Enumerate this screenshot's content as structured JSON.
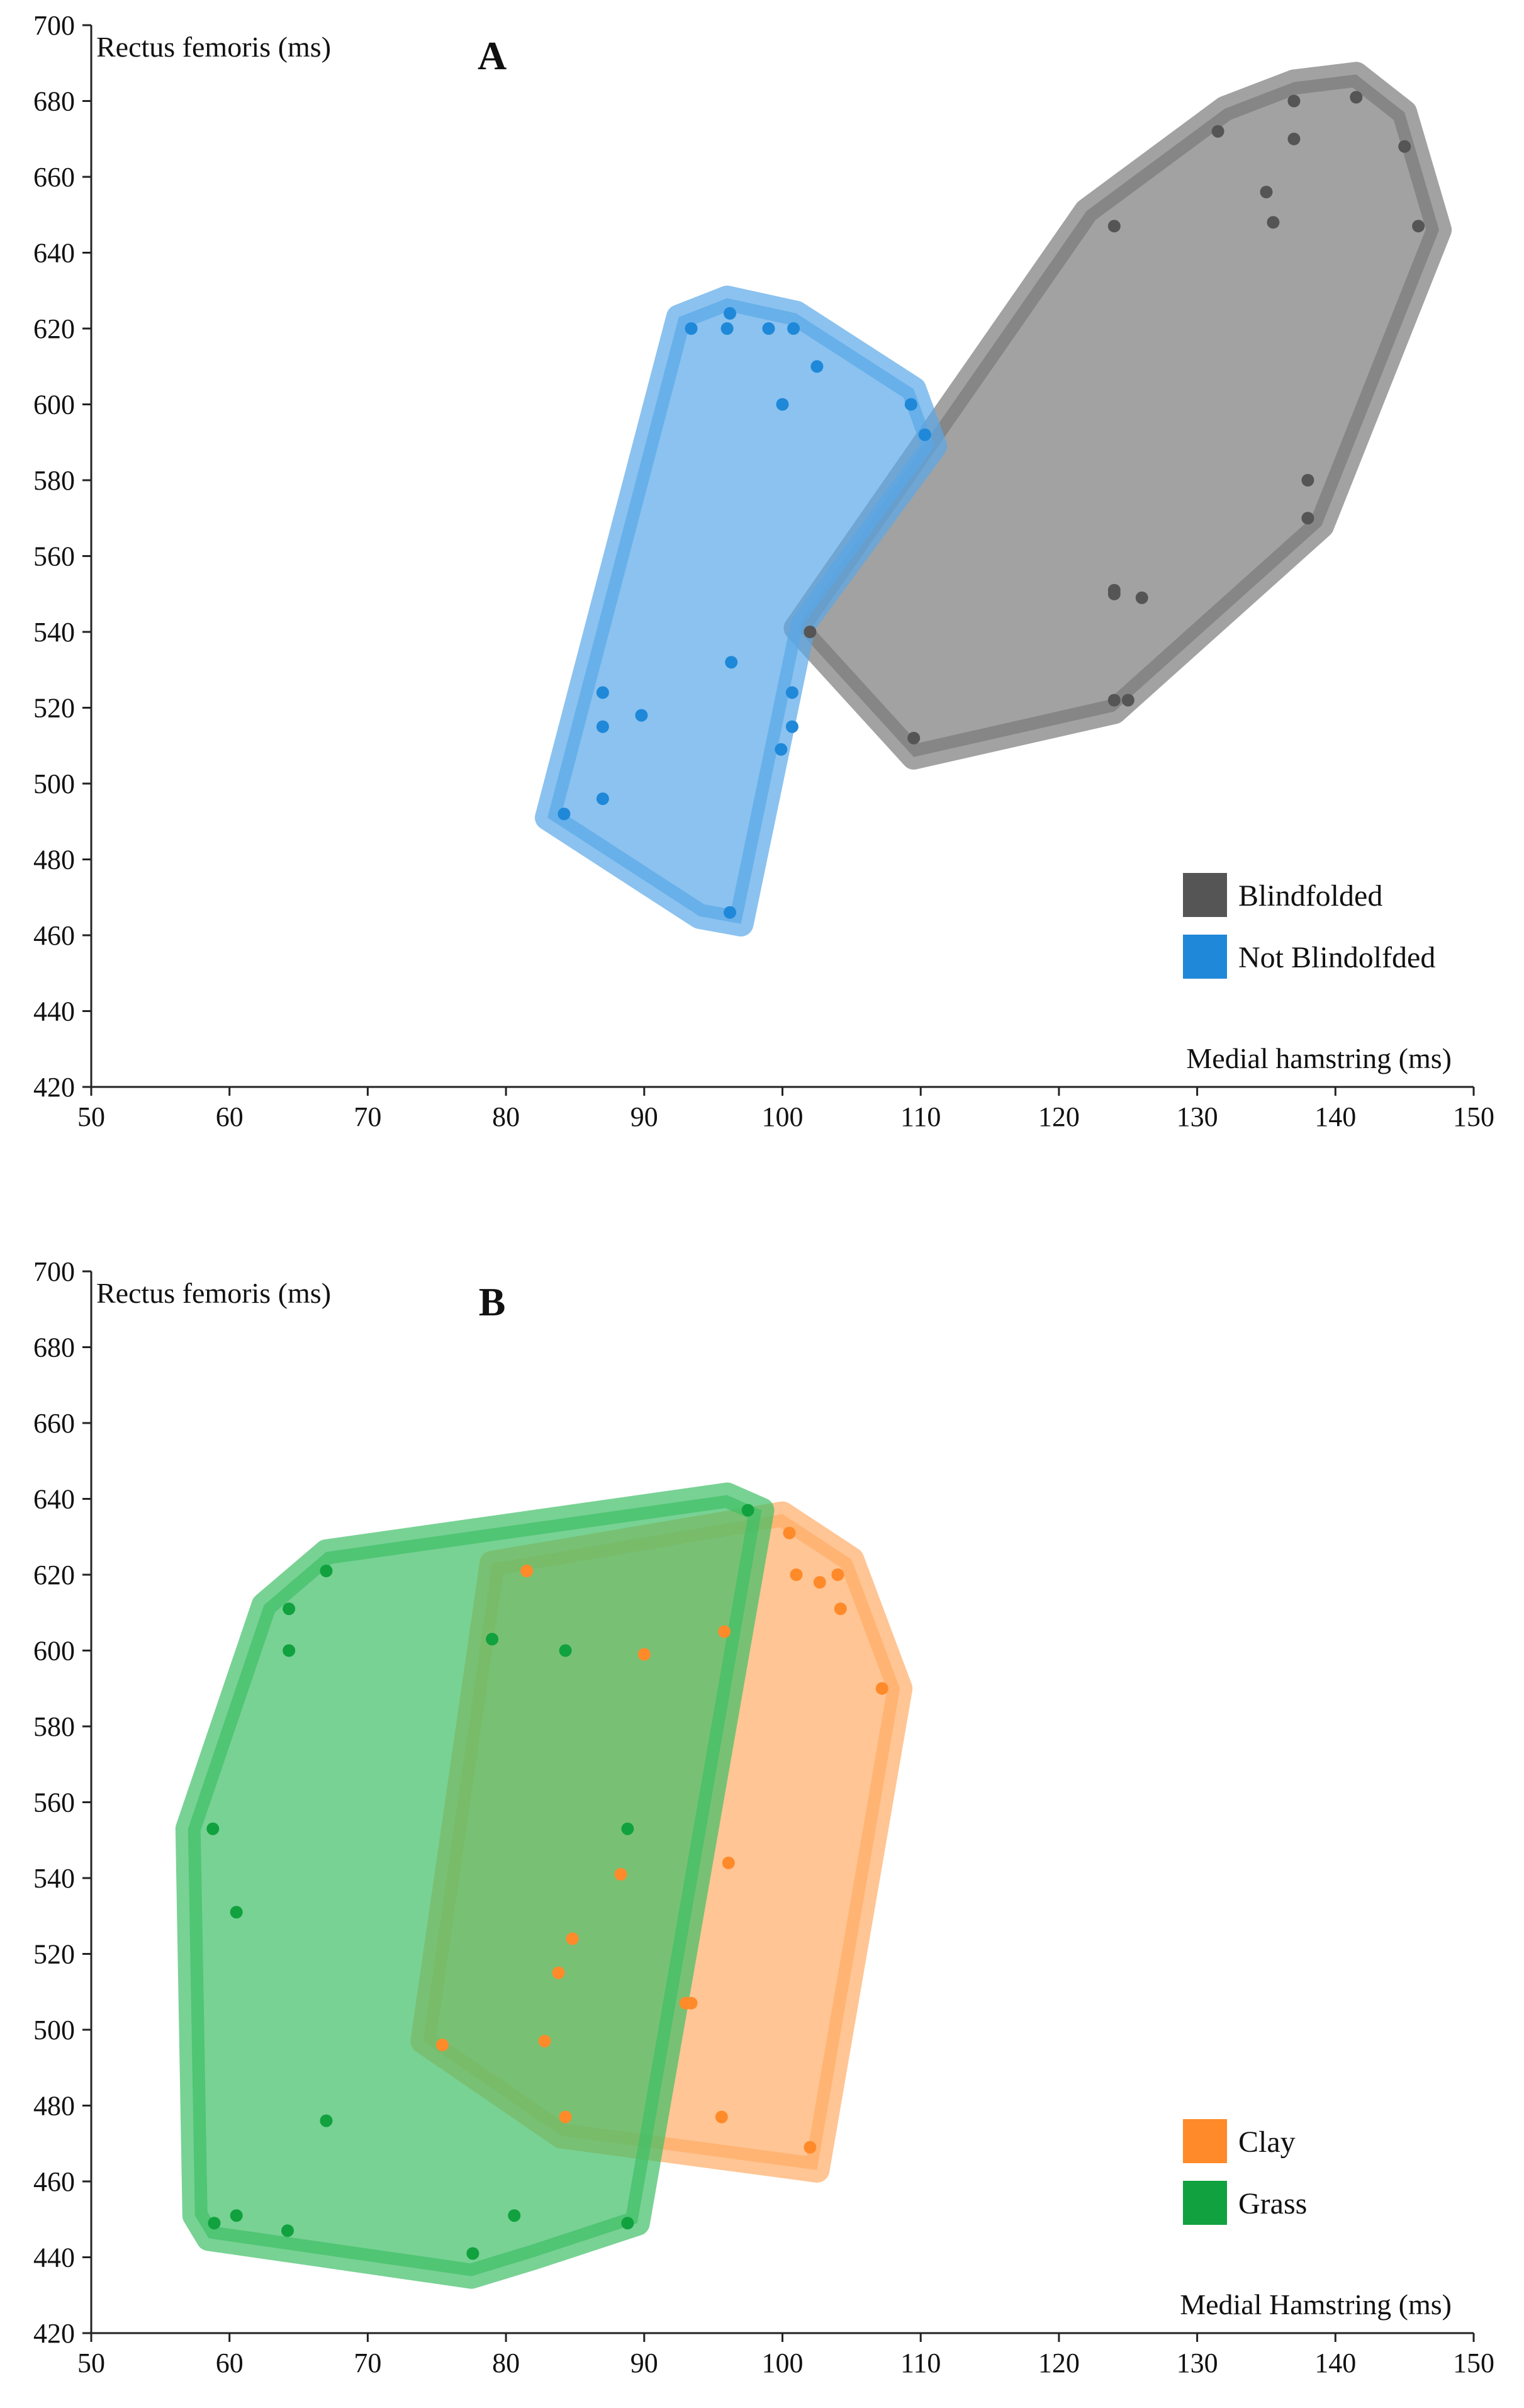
{
  "chart_data": [
    {
      "type": "scatter",
      "panel_label": "A",
      "xlabel": "Medial hamstring (ms)",
      "ylabel": "Rectus femoris (ms)",
      "xlim": [
        50,
        150
      ],
      "ylim": [
        420,
        700
      ],
      "xticks": [
        50,
        60,
        70,
        80,
        90,
        100,
        110,
        120,
        130,
        140,
        150
      ],
      "yticks": [
        420,
        440,
        460,
        480,
        500,
        520,
        540,
        560,
        580,
        600,
        620,
        640,
        660,
        680,
        700
      ],
      "legend_position": "bottom-right",
      "series": [
        {
          "name": "Blindfolded",
          "color": "#555555",
          "hull_color": "#7a7a7a",
          "points": [
            [
              141.5,
              681
            ],
            [
              137,
              680
            ],
            [
              131.5,
              672
            ],
            [
              137,
              670
            ],
            [
              145,
              668
            ],
            [
              135,
              656
            ],
            [
              135.5,
              648
            ],
            [
              124,
              647
            ],
            [
              146,
              647
            ],
            [
              138,
              580
            ],
            [
              138,
              570
            ],
            [
              124,
              551
            ],
            [
              124,
              550
            ],
            [
              126,
              549
            ],
            [
              102,
              540
            ],
            [
              124,
              522
            ],
            [
              125,
              522
            ],
            [
              109.5,
              512
            ]
          ],
          "hull": [
            [
              101,
              541
            ],
            [
              122,
              651
            ],
            [
              132,
              678
            ],
            [
              137,
              685
            ],
            [
              141.5,
              687
            ],
            [
              145,
              677
            ],
            [
              147.5,
              646
            ],
            [
              139,
              568
            ],
            [
              124,
              519
            ],
            [
              109.5,
              507
            ]
          ]
        },
        {
          "name": "Not Blindolfded",
          "color": "#1f88d8",
          "hull_color": "#5aa8e8",
          "points": [
            [
              96.2,
              624
            ],
            [
              93.4,
              620
            ],
            [
              96,
              620
            ],
            [
              99,
              620
            ],
            [
              100.8,
              620
            ],
            [
              102.5,
              610
            ],
            [
              100,
              600
            ],
            [
              109.3,
              600
            ],
            [
              110.3,
              592
            ],
            [
              96.3,
              532
            ],
            [
              87,
              524
            ],
            [
              100.7,
              524
            ],
            [
              89.8,
              518
            ],
            [
              87,
              515
            ],
            [
              100.7,
              515
            ],
            [
              99.9,
              509
            ],
            [
              87,
              496
            ],
            [
              84.2,
              492
            ],
            [
              96.2,
              466
            ]
          ],
          "hull": [
            [
              83,
              491
            ],
            [
              92.5,
              623
            ],
            [
              96,
              628
            ],
            [
              101,
              624
            ],
            [
              109.5,
              604
            ],
            [
              111,
              589
            ],
            [
              101.5,
              542
            ],
            [
              97,
              463
            ],
            [
              94,
              465
            ]
          ]
        }
      ]
    },
    {
      "type": "scatter",
      "panel_label": "B",
      "xlabel": "Medial Hamstring (ms)",
      "ylabel": "Rectus femoris (ms)",
      "xlim": [
        50,
        150
      ],
      "ylim": [
        420,
        700
      ],
      "xticks": [
        50,
        60,
        70,
        80,
        90,
        100,
        110,
        120,
        130,
        140,
        150
      ],
      "yticks": [
        420,
        440,
        460,
        480,
        500,
        520,
        540,
        560,
        580,
        600,
        620,
        640,
        660,
        680,
        700
      ],
      "legend_position": "bottom-right",
      "series": [
        {
          "name": "Clay",
          "color": "#ff8a2a",
          "hull_color": "#ffad66",
          "points": [
            [
              100.5,
              631
            ],
            [
              81.5,
              621
            ],
            [
              101,
              620
            ],
            [
              102.7,
              618
            ],
            [
              104,
              620
            ],
            [
              104.2,
              611
            ],
            [
              95.8,
              605
            ],
            [
              90,
              599
            ],
            [
              107.2,
              590
            ],
            [
              96.1,
              544
            ],
            [
              88.3,
              541
            ],
            [
              84.8,
              524
            ],
            [
              83.8,
              515
            ],
            [
              93,
              507
            ],
            [
              93.4,
              507
            ],
            [
              75.4,
              496
            ],
            [
              82.8,
              497
            ],
            [
              84.3,
              477
            ],
            [
              95.6,
              477
            ],
            [
              102,
              469
            ]
          ],
          "hull": [
            [
              74,
              497
            ],
            [
              79,
              623
            ],
            [
              100,
              636
            ],
            [
              105,
              624
            ],
            [
              108.5,
              590
            ],
            [
              102.5,
              463
            ],
            [
              84,
              472
            ]
          ]
        },
        {
          "name": "Grass",
          "color": "#11a13e",
          "hull_color": "#3fbf66",
          "points": [
            [
              97.5,
              637
            ],
            [
              67,
              621
            ],
            [
              64.3,
              611
            ],
            [
              64.3,
              600
            ],
            [
              79,
              603
            ],
            [
              84.3,
              600
            ],
            [
              58.8,
              553
            ],
            [
              88.8,
              553
            ],
            [
              60.5,
              531
            ],
            [
              67,
              476
            ],
            [
              58.9,
              449
            ],
            [
              60.5,
              451
            ],
            [
              64.2,
              447
            ],
            [
              80.6,
              451
            ],
            [
              88.8,
              449
            ],
            [
              77.6,
              441
            ]
          ],
          "hull": [
            [
              57,
              553
            ],
            [
              62.5,
              612
            ],
            [
              67,
              626
            ],
            [
              96,
              641
            ],
            [
              98.5,
              637
            ],
            [
              89.5,
              449
            ],
            [
              82,
              440
            ],
            [
              77.5,
              435
            ],
            [
              58.5,
              445
            ],
            [
              57.5,
              451
            ]
          ]
        }
      ]
    }
  ]
}
